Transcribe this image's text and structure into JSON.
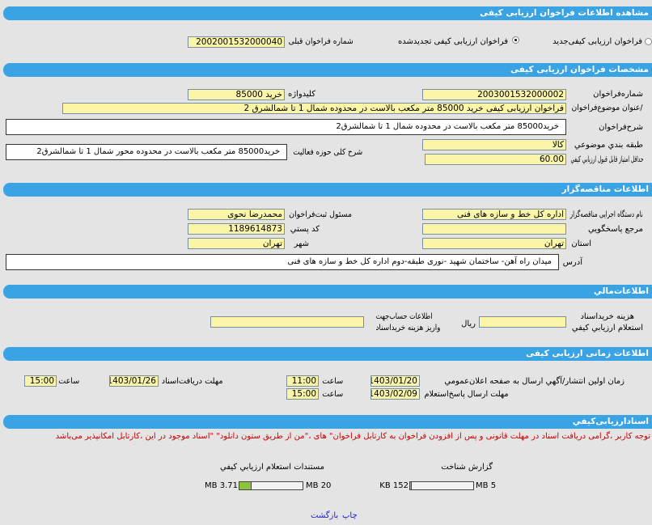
{
  "page_title": "مشاهده اطلاعات فراخوان ارزیابی کیفی",
  "call_type": {
    "option_new": "فراخوان ارزیابی کیفی‌جدید",
    "option_renewed": "فراخوان ارزیابی کیفی تجدیدشده",
    "selected": "renewed",
    "prev_number_label": "شماره فراخوان قبلی",
    "prev_number": "2002001532000040"
  },
  "spec": {
    "title": "مشخصات فراخوان ارزیابی کیفی",
    "number_label": "شماره‌فراخوان",
    "number": "2003001532000002",
    "keyword_label": "کلیدواژه",
    "keyword": "خرید 85000",
    "subject_label": "/عنوان موضوع‌فراخوان",
    "subject": "فراخوان ارزیابی کیفی خرید 85000 متر مکعب بالاست در محدوده شمال 1 تا شمالشرق 2",
    "desc_label": "شرح‌فراخوان",
    "desc": "خرید85000 متر مکعب بالاست در محدوده شمال 1 تا شمالشرق2",
    "category_label": "طبقه بندي موضوعي",
    "category": "کالا",
    "scope_label": "شرح کلی حوزه فعالیت",
    "scope": "خرید85000 متر مکعب بالاست در محدوده محور شمال 1 تا شمالشرق2",
    "min_score_label": "حداقل امتیاز قابل قبول ارزیابي کیفي",
    "min_score": "60.00"
  },
  "org": {
    "title": "اطلاعات مناقصه‌گزار",
    "agency_label": "نام دستگاه اجرایی مناقصه‌گزار",
    "agency": "اداره کل خط و سازه های فنی",
    "registrar_label": "مسئول ثبت‌فراخوان",
    "registrar": "محمدرضا نحوی",
    "ref_label": "مرجع پاسخگويي",
    "ref": "",
    "postal_label": "کد پستي",
    "postal": "1189614873",
    "province_label": "استان",
    "province": "تهران",
    "city_label": "شهر",
    "city": "تهران",
    "address_label": "آدرس",
    "address": "میدان راه آهن- ساختمان شهید -نوری طبقه-دوم اداره کل خط و سازه های فنی"
  },
  "finance": {
    "title": "اطلاعات‌مالي",
    "fee_label_1": "هزینه خریداسناد",
    "fee_label_2": "استعلام ارزيابي کيفي",
    "fee": "",
    "currency": "ریال",
    "account_label_1": "اطلاعات حساب‌جهت",
    "account_label_2": "واریز هزینه خریداسناد",
    "account": ""
  },
  "timing": {
    "title": "اطلاعات زمانی ارزیابی کیفی",
    "publish_label": "زمان اولین انتشار/آگهي ارسال به صفحه اعلان‌عمومي",
    "publish_date": "1403/01/20",
    "publish_time": "11:00",
    "response_label": "مهلت ارسال پاسخ‌استعلام",
    "response_date": "1403/02/09",
    "response_time": "15:00",
    "receive_label": "مهلت دریافت‌اسناد",
    "receive_date": "1403/01/26",
    "receive_time": "15:00",
    "time_label": "ساعت"
  },
  "docs": {
    "title": "اسنادارزیابی‌کیفي",
    "notice": "توجه کاربر ،گرامی دریافت اسناد در مهلت قانونی و پس از افزودن فراخوان به کارتابل فراخوان\" های ،\"من از طریق ستون دانلود\" \"اسناد موجود در این ،کارتابل امکانپذیر می‌باشد",
    "items": [
      {
        "label": "گزارش شناخت",
        "used": "152 KB",
        "max": "5 MB",
        "fraction": 0.03
      },
      {
        "label": "مستندات استعلام ارزيابي کيفي",
        "used": "3.71 MB",
        "max": "20 MB",
        "fraction": 0.19
      }
    ]
  },
  "actions": {
    "print": "چاپ",
    "back": "بازگشت"
  },
  "colors": {
    "header": "#3aa3e3",
    "input": "#fbf5a8",
    "notice": "#cc0000",
    "link": "#2222cc"
  }
}
